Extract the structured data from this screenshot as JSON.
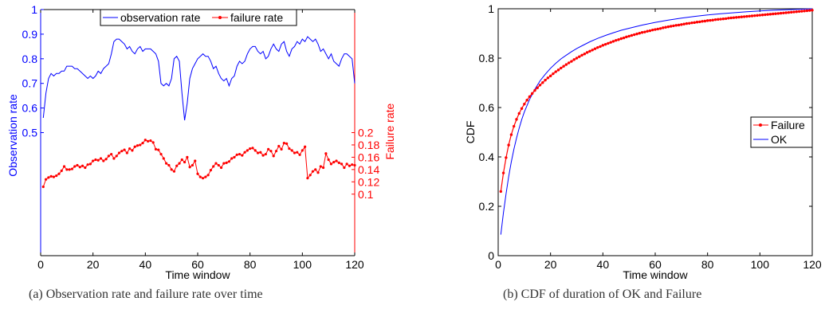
{
  "captions": {
    "a": "(a) Observation rate and failure rate over time",
    "b": "(b) CDF of duration of OK and Failure"
  },
  "chart_data": [
    {
      "type": "line",
      "title": "",
      "xlabel": "Time window",
      "ylabel_left": "Observation rate",
      "ylabel_right": "Failure rate",
      "xlim": [
        0,
        120
      ],
      "xticks": [
        0,
        20,
        40,
        60,
        80,
        100,
        120
      ],
      "ylim_left": [
        0,
        1
      ],
      "yticks_left": [
        0.5,
        0.6,
        0.7,
        0.8,
        0.9,
        1
      ],
      "ylim_right": [
        0,
        0.4
      ],
      "yticks_right": [
        0.1,
        0.12,
        0.14,
        0.16,
        0.18,
        0.2
      ],
      "legend_position": "top-center",
      "series": [
        {
          "name": "observation rate",
          "axis": "left",
          "color": "#0000ff",
          "marker": "none",
          "x": [
            1,
            2,
            3,
            4,
            5,
            6,
            7,
            8,
            9,
            10,
            11,
            12,
            13,
            14,
            15,
            16,
            17,
            18,
            19,
            20,
            21,
            22,
            23,
            24,
            25,
            26,
            27,
            28,
            29,
            30,
            31,
            32,
            33,
            34,
            35,
            36,
            37,
            38,
            39,
            40,
            41,
            42,
            43,
            44,
            45,
            46,
            47,
            48,
            49,
            50,
            51,
            52,
            53,
            54,
            55,
            56,
            57,
            58,
            59,
            60,
            61,
            62,
            63,
            64,
            65,
            66,
            67,
            68,
            69,
            70,
            71,
            72,
            73,
            74,
            75,
            76,
            77,
            78,
            79,
            80,
            81,
            82,
            83,
            84,
            85,
            86,
            87,
            88,
            89,
            90,
            91,
            92,
            93,
            94,
            95,
            96,
            97,
            98,
            99,
            100,
            101,
            102,
            103,
            104,
            105,
            106,
            107,
            108,
            109,
            110,
            111,
            112,
            113,
            114,
            115,
            116,
            117,
            118,
            119,
            120
          ],
          "y": [
            0.56,
            0.66,
            0.72,
            0.74,
            0.73,
            0.74,
            0.74,
            0.75,
            0.75,
            0.77,
            0.77,
            0.77,
            0.76,
            0.76,
            0.75,
            0.74,
            0.73,
            0.72,
            0.73,
            0.72,
            0.73,
            0.75,
            0.74,
            0.76,
            0.77,
            0.78,
            0.82,
            0.87,
            0.88,
            0.88,
            0.87,
            0.86,
            0.84,
            0.85,
            0.83,
            0.82,
            0.84,
            0.85,
            0.83,
            0.84,
            0.84,
            0.84,
            0.83,
            0.82,
            0.79,
            0.7,
            0.69,
            0.7,
            0.69,
            0.72,
            0.8,
            0.81,
            0.79,
            0.66,
            0.55,
            0.62,
            0.72,
            0.76,
            0.78,
            0.8,
            0.81,
            0.82,
            0.81,
            0.81,
            0.79,
            0.76,
            0.77,
            0.74,
            0.72,
            0.71,
            0.72,
            0.69,
            0.72,
            0.73,
            0.77,
            0.79,
            0.78,
            0.79,
            0.82,
            0.84,
            0.85,
            0.85,
            0.83,
            0.82,
            0.83,
            0.8,
            0.81,
            0.84,
            0.86,
            0.84,
            0.83,
            0.86,
            0.87,
            0.83,
            0.81,
            0.84,
            0.85,
            0.87,
            0.86,
            0.88,
            0.87,
            0.89,
            0.88,
            0.87,
            0.88,
            0.86,
            0.83,
            0.84,
            0.82,
            0.8,
            0.82,
            0.79,
            0.78,
            0.77,
            0.8,
            0.82,
            0.82,
            0.81,
            0.8,
            0.7
          ]
        },
        {
          "name": "failure rate",
          "axis": "right",
          "color": "#ff0000",
          "marker": "dot",
          "x": [
            1,
            2,
            3,
            4,
            5,
            6,
            7,
            8,
            9,
            10,
            11,
            12,
            13,
            14,
            15,
            16,
            17,
            18,
            19,
            20,
            21,
            22,
            23,
            24,
            25,
            26,
            27,
            28,
            29,
            30,
            31,
            32,
            33,
            34,
            35,
            36,
            37,
            38,
            39,
            40,
            41,
            42,
            43,
            44,
            45,
            46,
            47,
            48,
            49,
            50,
            51,
            52,
            53,
            54,
            55,
            56,
            57,
            58,
            59,
            60,
            61,
            62,
            63,
            64,
            65,
            66,
            67,
            68,
            69,
            70,
            71,
            72,
            73,
            74,
            75,
            76,
            77,
            78,
            79,
            80,
            81,
            82,
            83,
            84,
            85,
            86,
            87,
            88,
            89,
            90,
            91,
            92,
            93,
            94,
            95,
            96,
            97,
            98,
            99,
            100,
            101,
            102,
            103,
            104,
            105,
            106,
            107,
            108,
            109,
            110,
            111,
            112,
            113,
            114,
            115,
            116,
            117,
            118,
            119,
            120
          ],
          "y": [
            0.112,
            0.124,
            0.127,
            0.129,
            0.128,
            0.13,
            0.133,
            0.138,
            0.145,
            0.14,
            0.14,
            0.141,
            0.145,
            0.147,
            0.144,
            0.146,
            0.143,
            0.148,
            0.149,
            0.154,
            0.156,
            0.155,
            0.158,
            0.154,
            0.157,
            0.162,
            0.165,
            0.158,
            0.162,
            0.167,
            0.17,
            0.172,
            0.167,
            0.174,
            0.171,
            0.177,
            0.179,
            0.18,
            0.183,
            0.188,
            0.186,
            0.187,
            0.184,
            0.173,
            0.172,
            0.165,
            0.158,
            0.15,
            0.147,
            0.14,
            0.137,
            0.146,
            0.15,
            0.156,
            0.152,
            0.16,
            0.144,
            0.147,
            0.154,
            0.133,
            0.128,
            0.126,
            0.128,
            0.131,
            0.139,
            0.145,
            0.15,
            0.147,
            0.143,
            0.15,
            0.151,
            0.153,
            0.158,
            0.16,
            0.164,
            0.165,
            0.163,
            0.168,
            0.171,
            0.174,
            0.175,
            0.171,
            0.167,
            0.168,
            0.163,
            0.165,
            0.173,
            0.17,
            0.162,
            0.17,
            0.178,
            0.173,
            0.183,
            0.182,
            0.174,
            0.171,
            0.167,
            0.168,
            0.164,
            0.171,
            0.177,
            0.126,
            0.131,
            0.137,
            0.14,
            0.135,
            0.145,
            0.143,
            0.166,
            0.156,
            0.149,
            0.152,
            0.154,
            0.151,
            0.149,
            0.143,
            0.149,
            0.146,
            0.148,
            0.147
          ]
        }
      ]
    },
    {
      "type": "line",
      "title": "",
      "xlabel": "Time window",
      "ylabel": "CDF",
      "xlim": [
        0,
        120
      ],
      "xticks": [
        0,
        20,
        40,
        60,
        80,
        100,
        120
      ],
      "ylim": [
        0,
        1
      ],
      "yticks": [
        0,
        0.2,
        0.4,
        0.6,
        0.8,
        1
      ],
      "legend_position": "right",
      "series": [
        {
          "name": "Failure",
          "color": "#ff0000",
          "marker": "dot",
          "x": [
            1,
            2,
            3,
            4,
            5,
            6,
            7,
            8,
            9,
            10,
            11,
            12,
            13,
            14,
            15,
            16,
            17,
            18,
            19,
            20,
            21,
            22,
            23,
            24,
            25,
            26,
            27,
            28,
            29,
            30,
            31,
            32,
            33,
            34,
            35,
            36,
            37,
            38,
            39,
            40,
            41,
            42,
            43,
            44,
            45,
            46,
            47,
            48,
            49,
            50,
            51,
            52,
            53,
            54,
            55,
            56,
            57,
            58,
            59,
            60,
            61,
            62,
            63,
            64,
            65,
            66,
            67,
            68,
            69,
            70,
            71,
            72,
            73,
            74,
            75,
            76,
            77,
            78,
            79,
            80,
            81,
            82,
            83,
            84,
            85,
            86,
            87,
            88,
            89,
            90,
            91,
            92,
            93,
            94,
            95,
            96,
            97,
            98,
            99,
            100,
            101,
            102,
            103,
            104,
            105,
            106,
            107,
            108,
            109,
            110,
            111,
            112,
            113,
            114,
            115,
            116,
            117,
            118,
            119,
            120
          ],
          "y": [
            0.26,
            0.335,
            0.397,
            0.448,
            0.49,
            0.524,
            0.552,
            0.576,
            0.596,
            0.614,
            0.63,
            0.644,
            0.657,
            0.669,
            0.68,
            0.691,
            0.701,
            0.711,
            0.72,
            0.728,
            0.737,
            0.745,
            0.752,
            0.76,
            0.767,
            0.774,
            0.781,
            0.787,
            0.794,
            0.8,
            0.806,
            0.812,
            0.817,
            0.823,
            0.828,
            0.833,
            0.838,
            0.843,
            0.847,
            0.852,
            0.856,
            0.86,
            0.864,
            0.868,
            0.872,
            0.875,
            0.879,
            0.882,
            0.886,
            0.889,
            0.892,
            0.895,
            0.898,
            0.901,
            0.904,
            0.906,
            0.909,
            0.911,
            0.914,
            0.916,
            0.918,
            0.92,
            0.923,
            0.925,
            0.927,
            0.929,
            0.931,
            0.933,
            0.934,
            0.936,
            0.938,
            0.94,
            0.941,
            0.943,
            0.944,
            0.946,
            0.947,
            0.949,
            0.95,
            0.952,
            0.953,
            0.954,
            0.956,
            0.957,
            0.958,
            0.959,
            0.96,
            0.962,
            0.963,
            0.964,
            0.965,
            0.966,
            0.967,
            0.968,
            0.969,
            0.97,
            0.971,
            0.972,
            0.973,
            0.974,
            0.975,
            0.976,
            0.977,
            0.978,
            0.979,
            0.98,
            0.981,
            0.982,
            0.983,
            0.984,
            0.985,
            0.986,
            0.987,
            0.988,
            0.989,
            0.99,
            0.991,
            0.992,
            0.993,
            0.994
          ]
        },
        {
          "name": "OK",
          "color": "#0000ff",
          "marker": "none",
          "x": [
            1,
            2,
            3,
            4,
            5,
            6,
            7,
            8,
            9,
            10,
            12,
            14,
            16,
            18,
            20,
            22,
            24,
            26,
            28,
            30,
            32,
            35,
            38,
            41,
            44,
            47,
            50,
            55,
            60,
            65,
            70,
            75,
            80,
            85,
            90,
            95,
            100,
            105,
            110,
            115,
            120
          ],
          "y": [
            0.085,
            0.174,
            0.251,
            0.319,
            0.379,
            0.431,
            0.476,
            0.516,
            0.551,
            0.582,
            0.633,
            0.674,
            0.708,
            0.735,
            0.759,
            0.779,
            0.797,
            0.812,
            0.826,
            0.839,
            0.85,
            0.866,
            0.88,
            0.892,
            0.903,
            0.913,
            0.921,
            0.934,
            0.945,
            0.954,
            0.962,
            0.969,
            0.975,
            0.98,
            0.984,
            0.988,
            0.991,
            0.994,
            0.996,
            0.998,
            1.0
          ]
        }
      ]
    }
  ]
}
